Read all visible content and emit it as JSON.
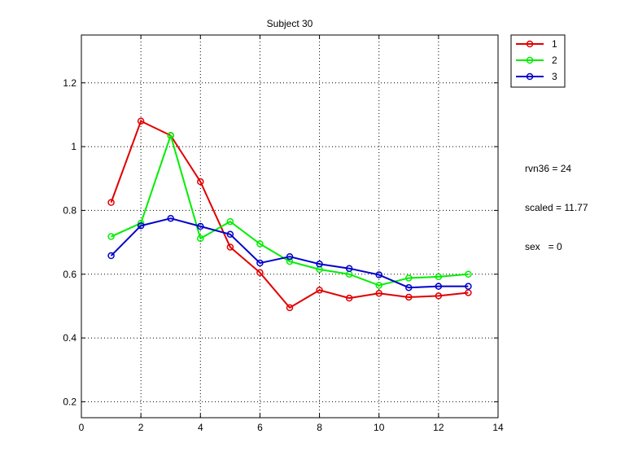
{
  "chart_data": {
    "type": "line",
    "title": "Subject 30",
    "xlabel": "",
    "ylabel": "",
    "xlim": [
      0,
      14
    ],
    "ylim": [
      0.15,
      1.35
    ],
    "xticks": [
      "0",
      "2",
      "4",
      "6",
      "8",
      "10",
      "12",
      "14"
    ],
    "yticks": [
      "0.2",
      "0.4",
      "0.6",
      "0.8",
      "1",
      "1.2"
    ],
    "grid": true,
    "legend_position": "outside-top-right",
    "marker": "circle",
    "x": [
      1,
      2,
      3,
      4,
      5,
      6,
      7,
      8,
      9,
      10,
      11,
      12,
      13
    ],
    "series": [
      {
        "name": "1",
        "color": "#e00000",
        "values": [
          0.825,
          1.08,
          1.035,
          0.89,
          0.685,
          0.605,
          0.495,
          0.55,
          0.525,
          0.54,
          0.528,
          0.532,
          0.542
        ]
      },
      {
        "name": "2",
        "color": "#00ee00",
        "values": [
          0.718,
          0.76,
          1.035,
          0.712,
          0.765,
          0.695,
          0.64,
          0.615,
          0.6,
          0.565,
          0.588,
          0.592,
          0.6
        ]
      },
      {
        "name": "3",
        "color": "#0000cc",
        "values": [
          0.658,
          0.752,
          0.775,
          0.75,
          0.725,
          0.635,
          0.655,
          0.632,
          0.618,
          0.598,
          0.558,
          0.562,
          0.562
        ]
      }
    ]
  },
  "annotations": [
    "rvn36 = 24",
    "scaled = 11.77",
    "sex   = 0"
  ]
}
